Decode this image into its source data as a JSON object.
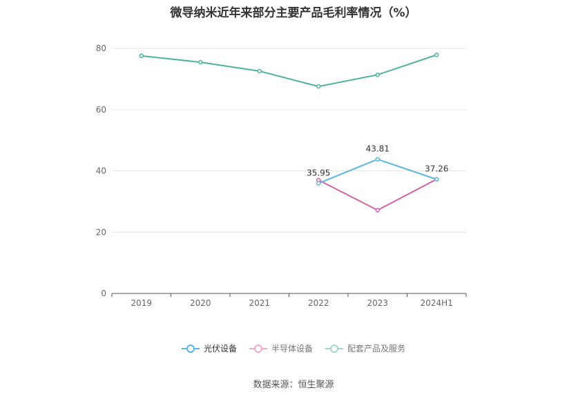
{
  "chart_data": {
    "type": "line",
    "title": "微导纳米近年来部分主要产品毛利率情况（%）",
    "categories": [
      "2019",
      "2020",
      "2021",
      "2022",
      "2023",
      "2024H1"
    ],
    "y_ticks": [
      "0",
      "20",
      "40",
      "60",
      "80"
    ],
    "ylim": [
      0,
      85
    ],
    "grid": true,
    "legend_position": "bottom",
    "series": [
      {
        "name": "光伏设备",
        "color": "#5ab4e6",
        "values": [
          null,
          null,
          null,
          35.95,
          43.81,
          37.26
        ],
        "labels": [
          "",
          "",
          "",
          "35.95",
          "43.81",
          "37.26"
        ]
      },
      {
        "name": "半导体设备",
        "color": "#d362a8",
        "values": [
          null,
          null,
          null,
          37.0,
          27.2,
          37.3
        ],
        "labels": [
          "",
          "",
          "",
          "",
          "",
          ""
        ]
      },
      {
        "name": "配套产品及服务",
        "color": "#4cb39a",
        "values": [
          77.6,
          75.5,
          72.6,
          67.6,
          71.4,
          77.9
        ],
        "labels": [
          "",
          "",
          "",
          "",
          "",
          ""
        ]
      }
    ]
  },
  "legend_swatch_colors": [
    "#5ab4e6",
    "#f0a7cf",
    "#9fd8c7"
  ],
  "source": "数据来源：恒生聚源"
}
